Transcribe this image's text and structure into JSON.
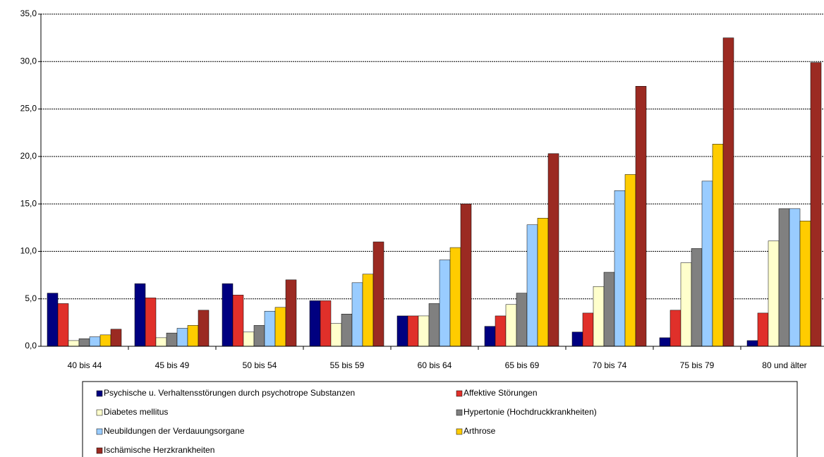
{
  "chart_data": {
    "type": "bar",
    "categories": [
      "40 bis 44",
      "45 bis 49",
      "50 bis 54",
      "55 bis 59",
      "60 bis 64",
      "65 bis 69",
      "70 bis 74",
      "75 bis 79",
      "80 und älter"
    ],
    "series": [
      {
        "name": "Psychische u. Verhaltensstörungen durch psychotrope Substanzen",
        "color": "#000080",
        "values": [
          5.6,
          6.6,
          6.6,
          4.8,
          3.2,
          2.1,
          1.5,
          0.9,
          0.6
        ]
      },
      {
        "name": "Affektive Störungen",
        "color": "#e0302a",
        "values": [
          4.5,
          5.1,
          5.4,
          4.8,
          3.2,
          3.2,
          3.5,
          3.8,
          3.5
        ]
      },
      {
        "name": "Diabetes mellitus",
        "color": "#ffffcc",
        "values": [
          0.6,
          0.9,
          1.5,
          2.4,
          3.2,
          4.4,
          6.3,
          8.8,
          11.1
        ]
      },
      {
        "name": "Hypertonie (Hochdruckkrankheiten)",
        "color": "#808080",
        "values": [
          0.8,
          1.4,
          2.2,
          3.4,
          4.5,
          5.6,
          7.8,
          10.3,
          14.5
        ]
      },
      {
        "name": "Neubildungen der Verdauungsorgane",
        "color": "#99ccff",
        "values": [
          1.0,
          1.9,
          3.7,
          6.7,
          9.1,
          12.8,
          16.4,
          17.4,
          14.5
        ]
      },
      {
        "name": "Arthrose",
        "color": "#ffcc00",
        "values": [
          1.2,
          2.2,
          4.1,
          7.6,
          10.4,
          13.5,
          18.1,
          21.3,
          13.2
        ]
      },
      {
        "name": "Ischämische Herzkrankheiten",
        "color": "#9b2a22",
        "values": [
          1.8,
          3.8,
          7.0,
          11.0,
          15.0,
          20.3,
          27.4,
          32.5,
          29.9
        ]
      }
    ],
    "ylim": [
      0,
      35
    ],
    "yticks": [
      {
        "value": 0,
        "label": "0,0"
      },
      {
        "value": 5,
        "label": "5,0"
      },
      {
        "value": 10,
        "label": "10,0"
      },
      {
        "value": 15,
        "label": "15,0"
      },
      {
        "value": 20,
        "label": "20,0"
      },
      {
        "value": 25,
        "label": "25,0"
      },
      {
        "value": 30,
        "label": "30,0"
      },
      {
        "value": 35,
        "label": "35,0"
      }
    ],
    "grid": true
  }
}
